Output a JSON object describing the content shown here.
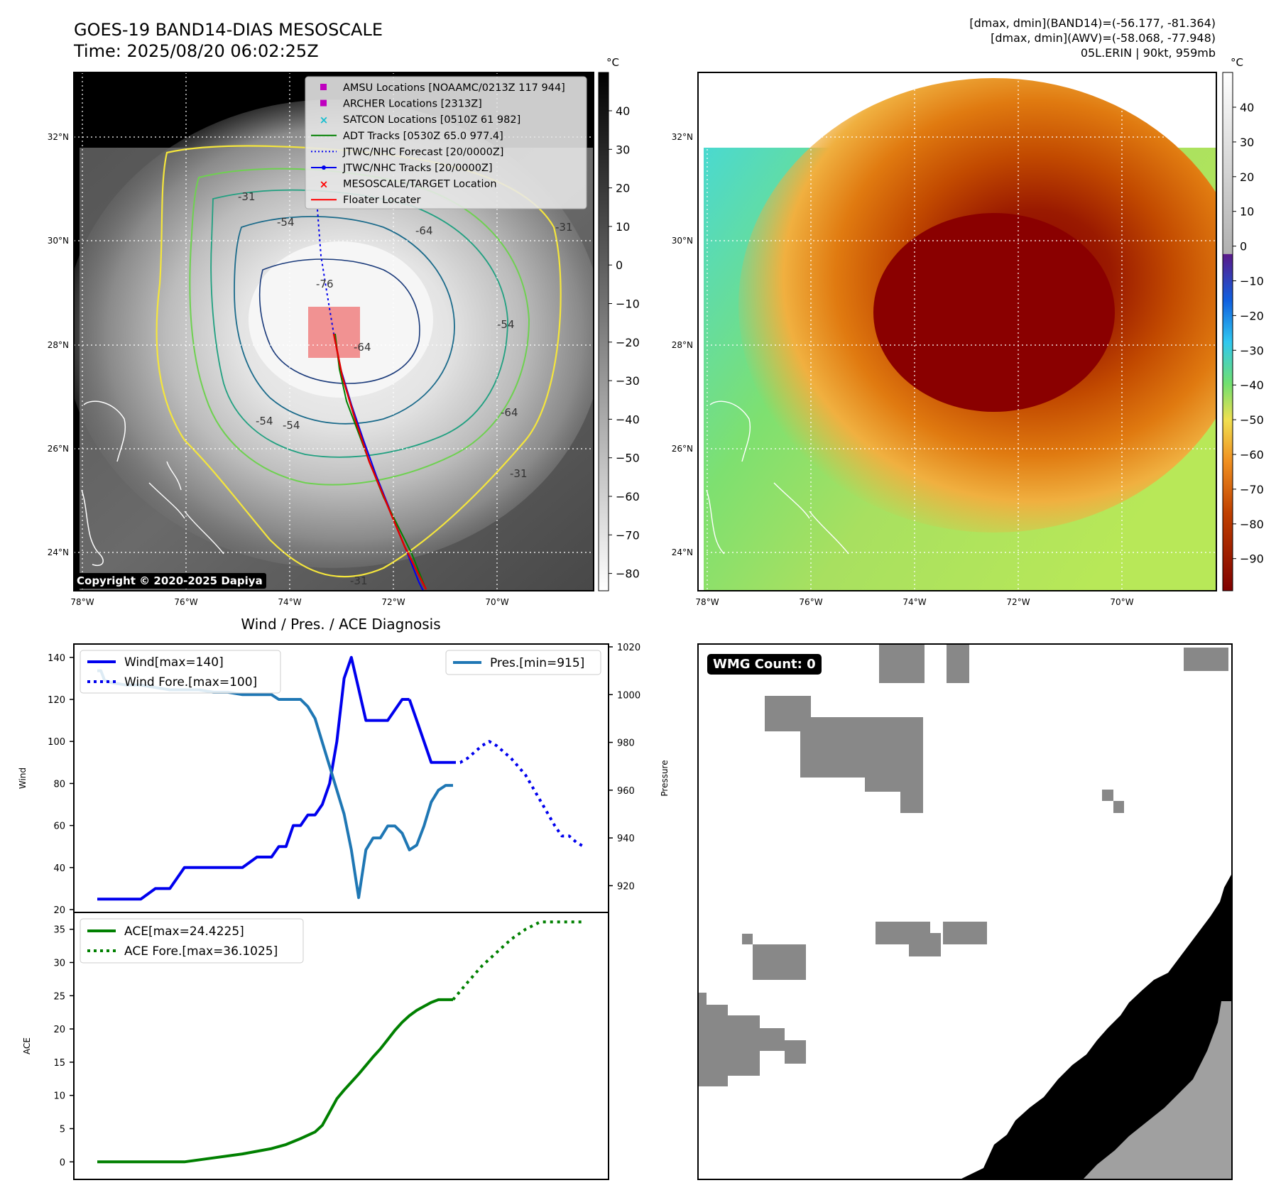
{
  "header": {
    "title_line1": "GOES-19 BAND14-DIAS MESOSCALE",
    "title_line2": "Time: 2025/08/20 06:02:25Z",
    "info_line1": "[dmax, dmin](BAND14)=(-56.177, -81.364)",
    "info_line2": "[dmax, dmin](AWV)=(-58.068, -77.948)",
    "info_line3": "05L.ERIN | 90kt, 959mb"
  },
  "copyright": "Copyright © 2020-2025 Dapiya",
  "wmg": {
    "label": "WMG Count: 0"
  },
  "colors": {
    "wind": "#0000ee",
    "pressure": "#1f77b4",
    "ace": "#008000",
    "floater_box": "#f08080"
  },
  "maps": {
    "unit": "°C",
    "lon_labels": [
      "78°W",
      "76°W",
      "74°W",
      "72°W",
      "70°W"
    ],
    "lat_labels": [
      "32°N",
      "30°N",
      "28°N",
      "26°N",
      "24°N"
    ],
    "ir_colorbar_ticks": [
      "40",
      "30",
      "20",
      "10",
      "0",
      "−10",
      "−20",
      "−30",
      "−40",
      "−50",
      "−60",
      "−70",
      "−80"
    ],
    "color_colorbar_ticks": [
      "40",
      "30",
      "20",
      "10",
      "0",
      "−10",
      "−20",
      "−30",
      "−40",
      "−50",
      "−60",
      "−70",
      "−80",
      "−90"
    ],
    "contour_labels": [
      "-31",
      "-54",
      "-64",
      "-76",
      "-54",
      "-64",
      "-31",
      "-54",
      "-31",
      "-64",
      "-54",
      "-31"
    ],
    "legend": [
      {
        "label": "AMSU Locations [NOAAMC/0213Z 117 944]",
        "marker": "square",
        "color": "#bf00bf"
      },
      {
        "label": "ARCHER Locations [2313Z]",
        "marker": "square",
        "color": "#bf00bf"
      },
      {
        "label": "SATCON Locations [0510Z 61 982]",
        "marker": "x",
        "color": "#17becf"
      },
      {
        "label": "ADT Tracks [0530Z 65.0 977.4]",
        "marker": "line",
        "color": "#008000"
      },
      {
        "label": "JTWC/NHC Forecast [20/0000Z]",
        "marker": "dotted",
        "color": "#0000ee"
      },
      {
        "label": "JTWC/NHC Tracks [20/0000Z]",
        "marker": "line-dot",
        "color": "#0000ee"
      },
      {
        "label": "MESOSCALE/TARGET Location",
        "marker": "x",
        "color": "#ff0000"
      },
      {
        "label": "Floater Locater",
        "marker": "line",
        "color": "#ff0000"
      }
    ]
  },
  "chart_data": [
    {
      "type": "line",
      "title": "Wind / Pres. / ACE Diagnosis",
      "ylabel": "Wind",
      "y2label": "Pressure",
      "ylim": [
        20,
        145
      ],
      "y2lim": [
        910,
        1020
      ],
      "yticks": [
        "140",
        "120",
        "100",
        "80",
        "60",
        "40",
        "20"
      ],
      "y2ticks": [
        "1020",
        "1000",
        "980",
        "960",
        "940",
        "920"
      ],
      "series": [
        {
          "name": "Wind[max=140]",
          "style": "solid",
          "axis": "left",
          "x": [
            0,
            4,
            8,
            12,
            16,
            20,
            24,
            28,
            32,
            36,
            40,
            44,
            48,
            50,
            52,
            54,
            56,
            58,
            60,
            62,
            64,
            66,
            68,
            70,
            72,
            74,
            76,
            78,
            80,
            82,
            84,
            86
          ],
          "values": [
            25,
            25,
            25,
            25,
            30,
            30,
            40,
            40,
            40,
            40,
            40,
            45,
            45,
            50,
            50,
            60,
            60,
            65,
            65,
            70,
            80,
            100,
            130,
            140,
            125,
            110,
            110,
            110,
            110,
            115,
            120,
            120
          ]
        },
        {
          "name": "Wind-tail",
          "style": "solid",
          "axis": "left",
          "hidden_label": true,
          "x": [
            86,
            88,
            90,
            92,
            94,
            96,
            98
          ],
          "values": [
            120,
            110,
            100,
            90,
            90,
            90,
            90
          ]
        },
        {
          "name": "Wind Fore.[max=100]",
          "style": "dotted",
          "axis": "left",
          "x": [
            98,
            100,
            102,
            104,
            106,
            108,
            110,
            112,
            114,
            116,
            118,
            120,
            122,
            124,
            126,
            128,
            130,
            132,
            134
          ],
          "values": [
            90,
            90,
            92,
            95,
            98,
            100,
            98,
            95,
            92,
            88,
            84,
            78,
            72,
            66,
            60,
            55,
            55,
            52,
            50
          ]
        },
        {
          "name": "Pres.[min=915]",
          "style": "solid",
          "axis": "right",
          "x": [
            0,
            1,
            2,
            4,
            8,
            12,
            16,
            20,
            24,
            28,
            32,
            36,
            40,
            44,
            48,
            50,
            52,
            54,
            56,
            58,
            60,
            62,
            64,
            66,
            68,
            70,
            72,
            74,
            76,
            78,
            80,
            82,
            84,
            86,
            88,
            90,
            92,
            94,
            96,
            98
          ],
          "values": [
            1010,
            1010,
            1006,
            1005,
            1004,
            1004,
            1003,
            1002,
            1002,
            1002,
            1001,
            1001,
            1000,
            1000,
            1000,
            998,
            998,
            998,
            998,
            995,
            990,
            980,
            970,
            960,
            950,
            935,
            915,
            935,
            940,
            940,
            945,
            945,
            942,
            935,
            937,
            945,
            955,
            960,
            962,
            962
          ]
        },
        {
          "name": "ACE[max=24.4225]",
          "style": "solid",
          "axis": "ace",
          "x": [
            0,
            8,
            16,
            24,
            32,
            40,
            48,
            52,
            56,
            60,
            62,
            64,
            66,
            68,
            70,
            72,
            74,
            76,
            78,
            80,
            82,
            84,
            86,
            88,
            90,
            92,
            94,
            96,
            98
          ],
          "values": [
            0,
            0,
            0,
            0,
            0.6,
            1.2,
            2,
            2.6,
            3.5,
            4.5,
            5.5,
            7.5,
            9.5,
            10.8,
            12,
            13.2,
            14.5,
            15.8,
            17,
            18.4,
            19.8,
            21,
            22,
            22.8,
            23.4,
            24,
            24.4,
            24.4,
            24.4
          ]
        },
        {
          "name": "ACE Fore.[max=36.1025]",
          "style": "dotted",
          "axis": "ace",
          "x": [
            98,
            102,
            106,
            110,
            114,
            118,
            122,
            126,
            130,
            134
          ],
          "values": [
            24.4,
            27,
            29.5,
            31.5,
            33.5,
            35,
            36.1,
            36.1,
            36.1,
            36.1
          ]
        }
      ],
      "ace_axis": {
        "ylabel": "ACE",
        "ylim": [
          -2,
          37
        ],
        "yticks": [
          "35",
          "30",
          "25",
          "20",
          "15",
          "10",
          "5",
          "0"
        ]
      }
    }
  ]
}
